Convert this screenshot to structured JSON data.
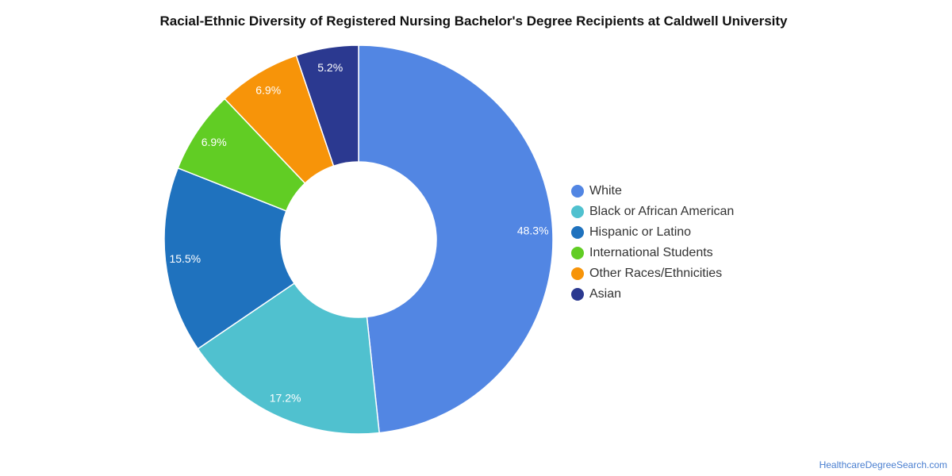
{
  "chart_data": {
    "type": "pie",
    "title": "Racial-Ethnic Diversity of Registered Nursing Bachelor's Degree Recipients at Caldwell University",
    "donut": true,
    "legend_position": "right",
    "unit": "%",
    "categories": [
      "White",
      "Black or African American",
      "Hispanic or Latino",
      "International Students",
      "Other Races/Ethnicities",
      "Asian"
    ],
    "values": [
      48.3,
      17.2,
      15.5,
      6.9,
      6.9,
      5.2
    ],
    "labels": [
      "48.3%",
      "17.2%",
      "15.5%",
      "6.9%",
      "6.9%",
      "5.2%"
    ],
    "colors": [
      "#5286e3",
      "#50c1cf",
      "#1f72be",
      "#61cd24",
      "#f79409",
      "#2b3990"
    ]
  },
  "footer": {
    "source": "HealthcareDegreeSearch.com"
  }
}
